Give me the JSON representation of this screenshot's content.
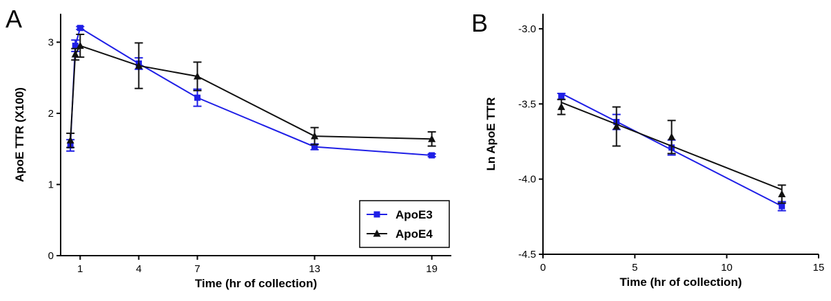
{
  "chart_data": [
    {
      "type": "line",
      "panel": "A",
      "xlabel": "Time (hr of collection)",
      "ylabel": "ApoE  TTR (X100)",
      "xticks": [
        1,
        4,
        7,
        13,
        19
      ],
      "yticks": [
        0,
        1,
        2,
        3
      ],
      "xlim": [
        0,
        20
      ],
      "ylim": [
        0,
        3.4
      ],
      "legend": "bottom-right",
      "series": [
        {
          "name": "ApoE3",
          "color": "#1f1fe6",
          "marker": "square",
          "x": [
            0.5,
            0.75,
            1,
            4,
            7,
            13,
            19
          ],
          "y": [
            1.55,
            2.95,
            3.2,
            2.7,
            2.22,
            1.53,
            1.41
          ],
          "err": [
            0.08,
            0.08,
            0.02,
            0.08,
            0.12,
            0.04,
            0.02
          ]
        },
        {
          "name": "ApoE4",
          "color": "#111111",
          "marker": "triangle",
          "x": [
            0.5,
            0.75,
            1,
            4,
            7,
            13,
            19
          ],
          "y": [
            1.62,
            2.83,
            2.95,
            2.67,
            2.52,
            1.68,
            1.64
          ],
          "err": [
            0.1,
            0.08,
            0.16,
            0.32,
            0.2,
            0.12,
            0.1
          ]
        }
      ]
    },
    {
      "type": "line",
      "panel": "B",
      "xlabel": "Time (hr of collection)",
      "ylabel": "Ln ApoE TTR",
      "xticks": [
        0,
        5,
        10,
        15
      ],
      "yticks": [
        -3.0,
        -3.5,
        -4.0,
        -4.5
      ],
      "ytick_labels": [
        "-3.0",
        "-3.5",
        "-4.0",
        "-4.5"
      ],
      "xlim": [
        0,
        15
      ],
      "ylim": [
        -4.5,
        -2.9
      ],
      "series": [
        {
          "name": "ApoE3",
          "color": "#1f1fe6",
          "marker": "square",
          "x": [
            1,
            4,
            7,
            13
          ],
          "y": [
            -3.45,
            -3.62,
            -3.79,
            -4.18
          ],
          "err": [
            0.02,
            0.05,
            0.05,
            0.03
          ],
          "fit": [
            -3.43,
            -4.18
          ]
        },
        {
          "name": "ApoE4",
          "color": "#111111",
          "marker": "triangle",
          "x": [
            1,
            4,
            7,
            13
          ],
          "y": [
            -3.52,
            -3.65,
            -3.72,
            -4.1
          ],
          "err": [
            0.05,
            0.13,
            0.11,
            0.06
          ],
          "fit": [
            -3.49,
            -4.07
          ]
        }
      ]
    }
  ]
}
